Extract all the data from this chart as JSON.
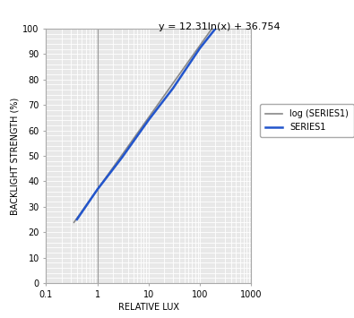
{
  "title_annotation": "y = 12.31ln(x) + 36.754",
  "xlabel": "RELATIVE LUX",
  "ylabel": "BACKLIGHT STRENGTH (%)",
  "xlim_log": [
    0.1,
    1000
  ],
  "ylim": [
    0,
    100
  ],
  "log_a": 12.31,
  "log_b": 36.754,
  "series1_x": [
    0.4,
    1.0,
    3.0,
    10.0,
    30.0,
    100.0,
    200.0
  ],
  "series1_y": [
    25.0,
    36.754,
    49.27,
    64.13,
    76.65,
    92.37,
    100.0
  ],
  "vline_x": 1.0,
  "vline_color": "#999999",
  "log_line_color": "#888888",
  "series1_color": "#2255cc",
  "series1_label": "SERIES1",
  "log_label": "log (SERIES1)",
  "plot_bg_color": "#e8e8e8",
  "fig_bg_color": "#ffffff",
  "grid_color": "#ffffff",
  "annotation_fontsize": 8,
  "axis_label_fontsize": 7,
  "tick_fontsize": 7,
  "legend_fontsize": 7,
  "ytick_step": 10,
  "xticks": [
    0.1,
    1,
    10,
    100,
    1000
  ],
  "xtick_labels": [
    "0.1",
    "1",
    "10",
    "100",
    "1000"
  ]
}
